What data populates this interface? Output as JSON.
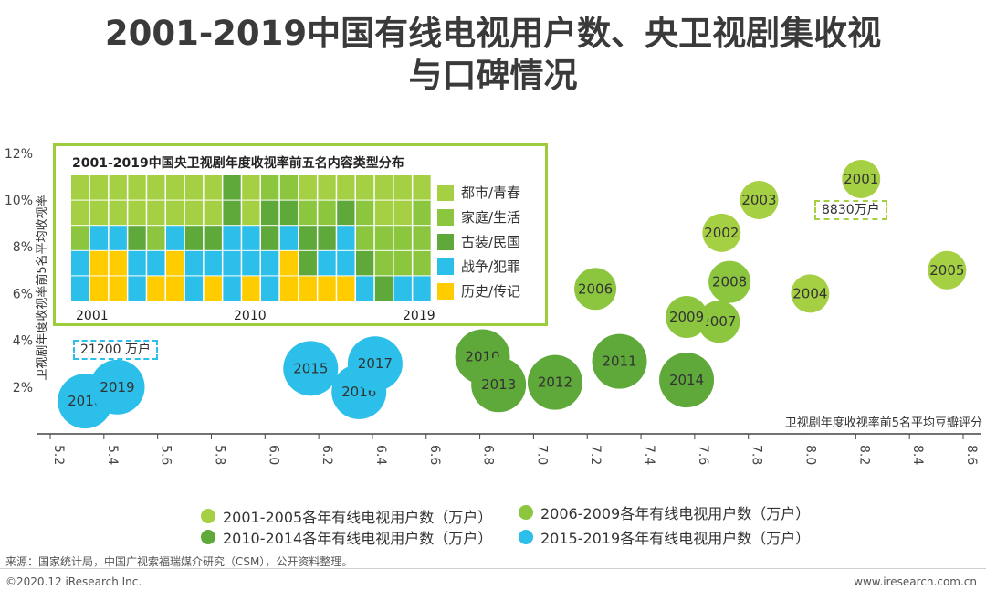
{
  "title_line1": "2001-2019中国有线电视用户数、央卫视剧集收视",
  "title_line2": "与口碑情况",
  "colors": {
    "p2001_2005": "#a6d043",
    "p2006_2009": "#8cc63f",
    "p2010_2014": "#5fa83a",
    "p2015_2019": "#2bbfea",
    "inset_border": "#9ccb3b",
    "cat_urban": "#a6d043",
    "cat_family": "#8cc63f",
    "cat_costume": "#5fa83a",
    "cat_war": "#2bbfea",
    "cat_history": "#ffcc00"
  },
  "chart_data": {
    "type": "scatter",
    "subtype": "bubble",
    "xlabel": "卫视剧年度收视率前5名平均豆瓣评分",
    "ylabel": "卫视剧年度收视率前5名平均收视率",
    "x_ticks": [
      "5.2",
      "5.4",
      "5.6",
      "5.8",
      "6.0",
      "6.2",
      "6.4",
      "6.6",
      "6.8",
      "7.0",
      "7.2",
      "7.4",
      "7.6",
      "7.8",
      "8.0",
      "8.2",
      "8.4",
      "8.6"
    ],
    "y_ticks": [
      "2%",
      "4%",
      "6%",
      "8%",
      "10%",
      "12%"
    ],
    "xlim": [
      5.2,
      8.6
    ],
    "ylim": [
      0,
      12
    ],
    "points": [
      {
        "year": "2001",
        "x": 8.22,
        "y": 10.9,
        "group": "p2001_2005"
      },
      {
        "year": "2002",
        "x": 7.7,
        "y": 8.6,
        "group": "p2001_2005"
      },
      {
        "year": "2003",
        "x": 7.84,
        "y": 10.0,
        "group": "p2001_2005"
      },
      {
        "year": "2004",
        "x": 8.03,
        "y": 6.0,
        "group": "p2001_2005"
      },
      {
        "year": "2005",
        "x": 8.54,
        "y": 7.0,
        "group": "p2001_2005"
      },
      {
        "year": "2006",
        "x": 7.23,
        "y": 6.2,
        "group": "p2006_2009"
      },
      {
        "year": "2007",
        "x": 7.69,
        "y": 4.8,
        "group": "p2006_2009"
      },
      {
        "year": "2008",
        "x": 7.73,
        "y": 6.5,
        "group": "p2006_2009"
      },
      {
        "year": "2009",
        "x": 7.57,
        "y": 5.0,
        "group": "p2006_2009"
      },
      {
        "year": "2010",
        "x": 6.81,
        "y": 3.3,
        "group": "p2010_2014"
      },
      {
        "year": "2011",
        "x": 7.32,
        "y": 3.1,
        "group": "p2010_2014"
      },
      {
        "year": "2012",
        "x": 7.08,
        "y": 2.2,
        "group": "p2010_2014"
      },
      {
        "year": "2013",
        "x": 6.87,
        "y": 2.1,
        "group": "p2010_2014"
      },
      {
        "year": "2014",
        "x": 7.57,
        "y": 2.3,
        "group": "p2010_2014"
      },
      {
        "year": "2015",
        "x": 6.17,
        "y": 2.8,
        "group": "p2015_2019"
      },
      {
        "year": "2016",
        "x": 6.35,
        "y": 1.8,
        "group": "p2015_2019"
      },
      {
        "year": "2017",
        "x": 6.41,
        "y": 3.0,
        "group": "p2015_2019"
      },
      {
        "year": "2018",
        "x": 5.33,
        "y": 1.4,
        "group": "p2015_2019"
      },
      {
        "year": "2019",
        "x": 5.45,
        "y": 2.0,
        "group": "p2015_2019"
      }
    ],
    "legend": [
      {
        "label": "2001-2005各年有线电视用户数（万户）",
        "group": "p2001_2005"
      },
      {
        "label": "2006-2009各年有线电视用户数（万户）",
        "group": "p2006_2009"
      },
      {
        "label": "2010-2014各年有线电视用户数（万户）",
        "group": "p2010_2014"
      },
      {
        "label": "2015-2019各年有线电视用户数（万户）",
        "group": "p2015_2019"
      }
    ],
    "callouts": [
      {
        "text": "8830万户",
        "color": "#a6d043"
      },
      {
        "text": "21200 万户",
        "color": "#2bbfea"
      }
    ],
    "inset": {
      "type": "stacked_bar",
      "title": "2001-2019中国央卫视剧年度收视率前五名内容类型分布",
      "years": [
        "2001",
        "2002",
        "2003",
        "2004",
        "2005",
        "2006",
        "2007",
        "2008",
        "2009",
        "2010",
        "2011",
        "2012",
        "2013",
        "2014",
        "2015",
        "2016",
        "2017",
        "2018",
        "2019"
      ],
      "year_labels": [
        "2001",
        "2010",
        "2019"
      ],
      "categories": [
        {
          "name": "都市/青春",
          "key": "cat_urban"
        },
        {
          "name": "家庭/生活",
          "key": "cat_family"
        },
        {
          "name": "古装/民国",
          "key": "cat_costume"
        },
        {
          "name": "战争/犯罪",
          "key": "cat_war"
        },
        {
          "name": "历史/传记",
          "key": "cat_history"
        }
      ],
      "stack_order": [
        "cat_history",
        "cat_war",
        "cat_costume",
        "cat_family",
        "cat_urban"
      ],
      "counts": [
        [
          2,
          1,
          0,
          2,
          0
        ],
        [
          2,
          0,
          0,
          1,
          2
        ],
        [
          2,
          0,
          0,
          1,
          2
        ],
        [
          2,
          0,
          1,
          2,
          0
        ],
        [
          2,
          1,
          0,
          1,
          1
        ],
        [
          2,
          0,
          0,
          1,
          2
        ],
        [
          2,
          0,
          1,
          2,
          0
        ],
        [
          2,
          0,
          1,
          1,
          1
        ],
        [
          0,
          0,
          2,
          3,
          0
        ],
        [
          2,
          0,
          0,
          2,
          1
        ],
        [
          0,
          1,
          2,
          2,
          0
        ],
        [
          0,
          1,
          1,
          1,
          2
        ],
        [
          1,
          1,
          2,
          0,
          1
        ],
        [
          1,
          1,
          1,
          1,
          1
        ],
        [
          1,
          0,
          1,
          2,
          1
        ],
        [
          1,
          2,
          1,
          1,
          0
        ],
        [
          2,
          2,
          1,
          0,
          0
        ],
        [
          2,
          2,
          0,
          1,
          0
        ],
        [
          1,
          3,
          0,
          1,
          0
        ]
      ]
    }
  },
  "source": "来源：国家统计局，中国广视索福瑞媒介研究（CSM），公开资料整理。",
  "footer_left": "©2020.12 iResearch Inc.",
  "footer_right": "www.iresearch.com.cn"
}
